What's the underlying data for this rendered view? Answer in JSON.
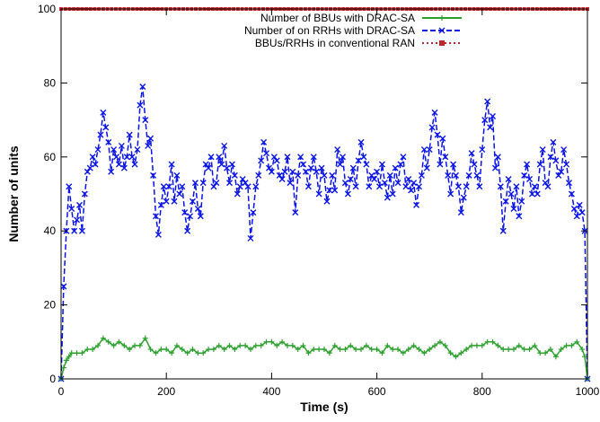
{
  "chart_data": {
    "type": "line",
    "xlabel": "Time (s)",
    "ylabel": "Number of units",
    "xlim": [
      0,
      1000
    ],
    "ylim": [
      0,
      100
    ],
    "xticks": [
      "0",
      "200",
      "400",
      "600",
      "800",
      "1000"
    ],
    "yticks": [
      "0",
      "20",
      "40",
      "60",
      "80",
      "100"
    ],
    "grid": false,
    "legend_position": "top-right",
    "series": [
      {
        "name": "Number of BBUs with DRAC-SA",
        "color": "#2ca02c",
        "marker": "plus",
        "line_style": "solid",
        "x": [
          0,
          5,
          10,
          15,
          20,
          30,
          40,
          50,
          60,
          70,
          80,
          90,
          100,
          110,
          120,
          130,
          140,
          150,
          160,
          170,
          180,
          190,
          200,
          210,
          220,
          230,
          240,
          250,
          260,
          270,
          280,
          290,
          300,
          310,
          320,
          330,
          340,
          350,
          360,
          370,
          380,
          390,
          400,
          410,
          420,
          430,
          440,
          450,
          460,
          470,
          480,
          490,
          500,
          510,
          520,
          530,
          540,
          550,
          560,
          570,
          580,
          590,
          600,
          610,
          620,
          630,
          640,
          650,
          660,
          670,
          680,
          690,
          700,
          710,
          720,
          730,
          740,
          750,
          760,
          770,
          780,
          790,
          800,
          810,
          820,
          830,
          840,
          850,
          860,
          870,
          880,
          890,
          900,
          910,
          920,
          930,
          940,
          950,
          960,
          970,
          980,
          990,
          995,
          1000
        ],
        "y": [
          0,
          3,
          5,
          6,
          7,
          7,
          7,
          8,
          8,
          9,
          11,
          10,
          9,
          10,
          9,
          8,
          9,
          9,
          11,
          8,
          7,
          8,
          8,
          7,
          9,
          8,
          7,
          8,
          7,
          7,
          8,
          8,
          9,
          8,
          9,
          8,
          9,
          9,
          8,
          9,
          9,
          10,
          10,
          9,
          10,
          9,
          9,
          8,
          9,
          7,
          8,
          8,
          8,
          7,
          9,
          8,
          8,
          9,
          8,
          8,
          9,
          8,
          8,
          7,
          9,
          8,
          8,
          7,
          8,
          9,
          8,
          7,
          8,
          9,
          10,
          9,
          7,
          6,
          7,
          8,
          9,
          9,
          9,
          10,
          10,
          9,
          8,
          8,
          8,
          9,
          8,
          8,
          9,
          7,
          7,
          8,
          6,
          8,
          9,
          9,
          10,
          8,
          6,
          0
        ]
      },
      {
        "name": "Number of on RRHs with DRAC-SA",
        "color": "#0a14e6",
        "marker": "x",
        "line_style": "dashed",
        "x": [
          0,
          5,
          10,
          15,
          20,
          25,
          30,
          35,
          40,
          45,
          50,
          55,
          60,
          65,
          70,
          75,
          80,
          85,
          90,
          95,
          100,
          105,
          110,
          115,
          120,
          125,
          130,
          135,
          140,
          145,
          150,
          155,
          160,
          165,
          170,
          175,
          180,
          185,
          190,
          195,
          200,
          205,
          210,
          215,
          220,
          225,
          230,
          235,
          240,
          245,
          250,
          255,
          260,
          265,
          270,
          275,
          280,
          285,
          290,
          295,
          300,
          305,
          310,
          315,
          320,
          325,
          330,
          335,
          340,
          345,
          350,
          355,
          360,
          365,
          370,
          375,
          380,
          385,
          390,
          395,
          400,
          405,
          410,
          415,
          420,
          425,
          430,
          435,
          440,
          445,
          450,
          455,
          460,
          465,
          470,
          475,
          480,
          485,
          490,
          495,
          500,
          505,
          510,
          515,
          520,
          525,
          530,
          535,
          540,
          545,
          550,
          555,
          560,
          565,
          570,
          575,
          580,
          585,
          590,
          595,
          600,
          605,
          610,
          615,
          620,
          625,
          630,
          635,
          640,
          645,
          650,
          655,
          660,
          665,
          670,
          675,
          680,
          685,
          690,
          695,
          700,
          705,
          710,
          715,
          720,
          725,
          730,
          735,
          740,
          745,
          750,
          755,
          760,
          765,
          770,
          775,
          780,
          785,
          790,
          795,
          800,
          805,
          810,
          815,
          820,
          825,
          830,
          835,
          840,
          845,
          850,
          855,
          860,
          865,
          870,
          875,
          880,
          885,
          890,
          895,
          900,
          905,
          910,
          915,
          920,
          925,
          930,
          935,
          940,
          945,
          950,
          955,
          960,
          965,
          970,
          975,
          980,
          985,
          990,
          995,
          1000
        ],
        "y": [
          0,
          25,
          40,
          52,
          46,
          40,
          43,
          47,
          40,
          50,
          56,
          57,
          60,
          58,
          62,
          66,
          72,
          68,
          64,
          56,
          62,
          60,
          58,
          63,
          57,
          60,
          66,
          60,
          58,
          62,
          74,
          79,
          70,
          63,
          65,
          55,
          44,
          39,
          47,
          52,
          48,
          52,
          58,
          48,
          55,
          50,
          52,
          45,
          40,
          44,
          48,
          53,
          46,
          44,
          53,
          58,
          57,
          60,
          52,
          53,
          60,
          58,
          63,
          57,
          53,
          58,
          55,
          50,
          52,
          54,
          53,
          52,
          38,
          45,
          52,
          55,
          59,
          64,
          61,
          57,
          56,
          60,
          59,
          55,
          54,
          56,
          60,
          53,
          56,
          45,
          55,
          60,
          58,
          56,
          52,
          57,
          60,
          56,
          50,
          57,
          55,
          48,
          51,
          55,
          51,
          62,
          58,
          60,
          53,
          50,
          54,
          57,
          52,
          59,
          64,
          60,
          58,
          52,
          55,
          54,
          56,
          52,
          58,
          53,
          49,
          55,
          50,
          57,
          53,
          58,
          60,
          52,
          54,
          51,
          53,
          47,
          52,
          55,
          62,
          57,
          62,
          68,
          72,
          66,
          58,
          65,
          60,
          55,
          50,
          58,
          55,
          52,
          45,
          49,
          52,
          55,
          61,
          58,
          55,
          52,
          62,
          70,
          75,
          68,
          71,
          57,
          60,
          52,
          40,
          48,
          54,
          50,
          46,
          52,
          44,
          48,
          55,
          58,
          54,
          50,
          52,
          50,
          58,
          62,
          53,
          52,
          60,
          64,
          59,
          55,
          56,
          62,
          58,
          53,
          50,
          46,
          44,
          47,
          45,
          40,
          0
        ]
      },
      {
        "name": "BBUs/RRHs in conventional RAN",
        "color": "#c0272d",
        "marker": "square",
        "line_style": "dotted",
        "x": [
          0,
          1000
        ],
        "y": [
          100,
          100
        ]
      }
    ]
  }
}
